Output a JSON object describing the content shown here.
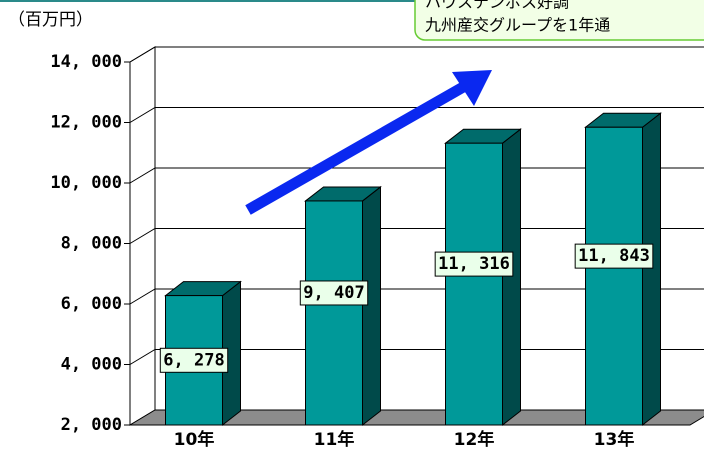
{
  "unit_label": "（百万円）",
  "callout": {
    "lines": [
      "ハウステンボス好調",
      "九州産交グループを1年通"
    ]
  },
  "chart_data": {
    "type": "bar3d",
    "categories": [
      "10年",
      "11年",
      "12年",
      "13年"
    ],
    "values": [
      6278,
      9407,
      11316,
      11843
    ],
    "value_labels": [
      "6, 278",
      "9, 407",
      "11, 316",
      "11, 843"
    ],
    "color": "#009999",
    "ylim": [
      2000,
      14000
    ],
    "yticks": [
      {
        "value": 2000,
        "label": "2, 000"
      },
      {
        "value": 4000,
        "label": "4, 000"
      },
      {
        "value": 6000,
        "label": "6, 000"
      },
      {
        "value": 8000,
        "label": "8, 000"
      },
      {
        "value": 10000,
        "label": "10, 000"
      },
      {
        "value": 12000,
        "label": "12, 000"
      },
      {
        "value": 14000,
        "label": "14, 000"
      }
    ],
    "grid": true
  }
}
